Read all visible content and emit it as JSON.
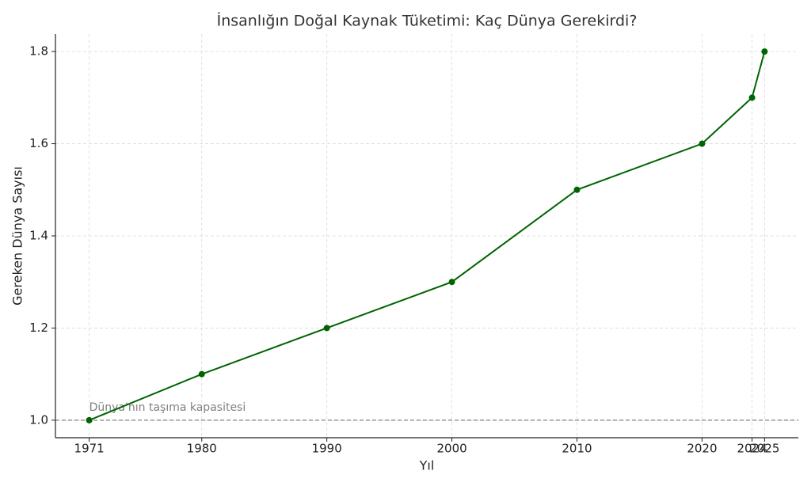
{
  "chart_data": {
    "type": "line",
    "title": "İnsanlığın Doğal Kaynak Tüketimi: Kaç Dünya Gerekirdi?",
    "xlabel": "Yıl",
    "ylabel": "Gereken Dünya Sayısı",
    "x": [
      1971,
      1980,
      1990,
      2000,
      2010,
      2020,
      2024,
      2025
    ],
    "series": [
      {
        "name": "Gereken Dünya Sayısı",
        "color": "#006400",
        "values": [
          1.0,
          1.1,
          1.2,
          1.3,
          1.5,
          1.6,
          1.7,
          1.8
        ]
      }
    ],
    "xlim": [
      1968.3,
      2027.7
    ],
    "ylim": [
      0.962,
      1.838
    ],
    "xticks": [
      1971,
      1980,
      1990,
      2000,
      2010,
      2020,
      2024,
      2025
    ],
    "yticks": [
      {
        "value": 1,
        "label": "1.0"
      },
      1.2,
      1.4,
      1.6,
      1.8
    ],
    "grid": true,
    "reference_line": {
      "value": 1,
      "label": "Dünya'nın taşıma kapasitesi",
      "color": "#808080"
    }
  }
}
